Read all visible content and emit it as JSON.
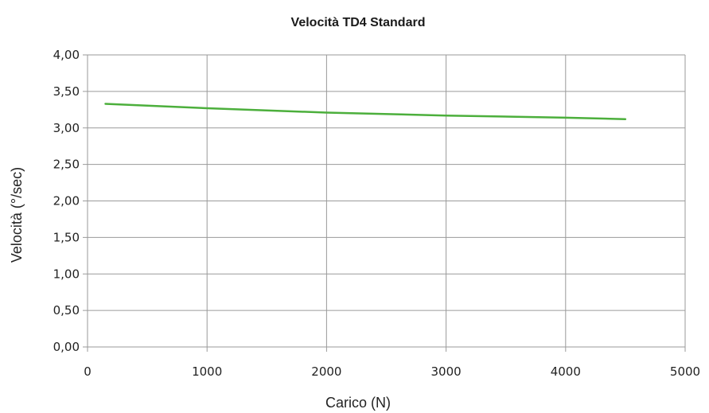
{
  "chart_data": {
    "type": "line",
    "title": "Velocità TD4 Standard",
    "xlabel": "Carico (N)",
    "ylabel": "Velocità (°/sec)",
    "xlim": [
      0,
      5000
    ],
    "ylim": [
      0,
      4
    ],
    "x_ticks": [
      0,
      1000,
      2000,
      3000,
      4000,
      5000
    ],
    "x_tick_labels": [
      "0",
      "1000",
      "2000",
      "3000",
      "4000",
      "5000"
    ],
    "y_ticks": [
      0,
      0.5,
      1,
      1.5,
      2,
      2.5,
      3,
      3.5,
      4
    ],
    "y_tick_labels": [
      "0,00",
      "0,50",
      "1,00",
      "1,50",
      "2,00",
      "2,50",
      "3,00",
      "3,50",
      "4,00"
    ],
    "grid": true,
    "legend": "none",
    "series": [
      {
        "color": "#4caf3c",
        "x": [
          150,
          1000,
          2000,
          3000,
          4000,
          4500
        ],
        "y": [
          3.33,
          3.27,
          3.21,
          3.17,
          3.14,
          3.12
        ]
      }
    ]
  }
}
